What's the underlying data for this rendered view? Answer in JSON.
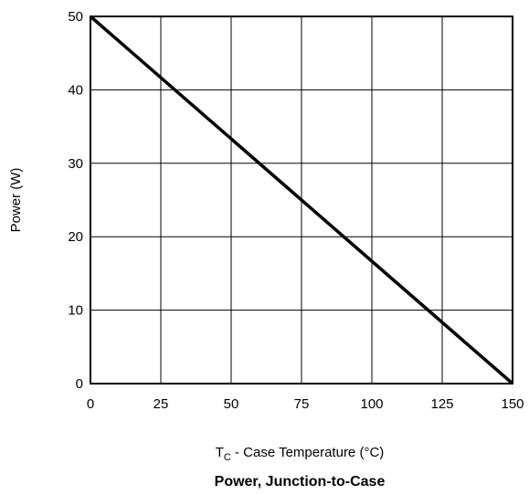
{
  "chart_data": {
    "type": "line",
    "title": "Power, Junction-to-Case",
    "xlabel": {
      "main": "T",
      "subscript": "C",
      "rest": " - Case Temperature (°C)"
    },
    "ylabel": "Power (W)",
    "xlim": [
      0,
      150
    ],
    "ylim": [
      0,
      50
    ],
    "x_ticks": [
      0,
      25,
      50,
      75,
      100,
      125,
      150
    ],
    "y_ticks": [
      0,
      10,
      20,
      30,
      40,
      50
    ],
    "grid": true,
    "series": [
      {
        "x": [
          0,
          150
        ],
        "y": [
          50,
          0
        ],
        "color": "#000000"
      }
    ]
  }
}
